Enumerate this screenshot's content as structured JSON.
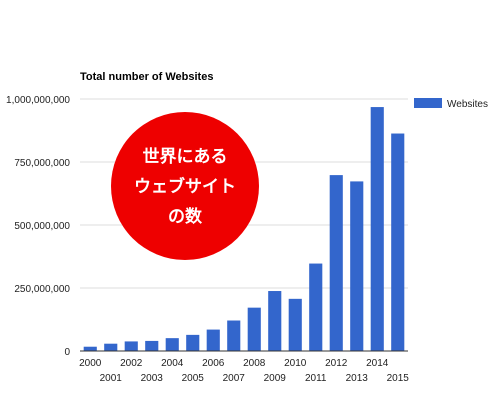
{
  "chart_data": {
    "type": "bar",
    "title": "Total number of Websites",
    "xlabel": "",
    "ylabel": "",
    "categories": [
      "2000",
      "2001",
      "2002",
      "2003",
      "2004",
      "2005",
      "2006",
      "2007",
      "2008",
      "2009",
      "2010",
      "2011",
      "2012",
      "2013",
      "2014",
      "2015"
    ],
    "series": [
      {
        "name": "Websites",
        "color": "#3366cc",
        "values": [
          17000000,
          29000000,
          38000000,
          40000000,
          51000000,
          64000000,
          85000000,
          121000000,
          172000000,
          238000000,
          207000000,
          347000000,
          698000000,
          673000000,
          968000000,
          863000000
        ]
      }
    ],
    "ylim": [
      0,
      1000000000
    ],
    "yticks": [
      0,
      250000000,
      500000000,
      750000000,
      1000000000
    ],
    "ytick_labels": [
      "0",
      "250,000,000",
      "500,000,000",
      "750,000,000",
      "1,000,000,000"
    ],
    "grid": true,
    "legend_position": "right"
  },
  "badge": {
    "lines": [
      "世界にある",
      "ウェブサイト",
      "の数"
    ],
    "color": "#ee0000"
  }
}
